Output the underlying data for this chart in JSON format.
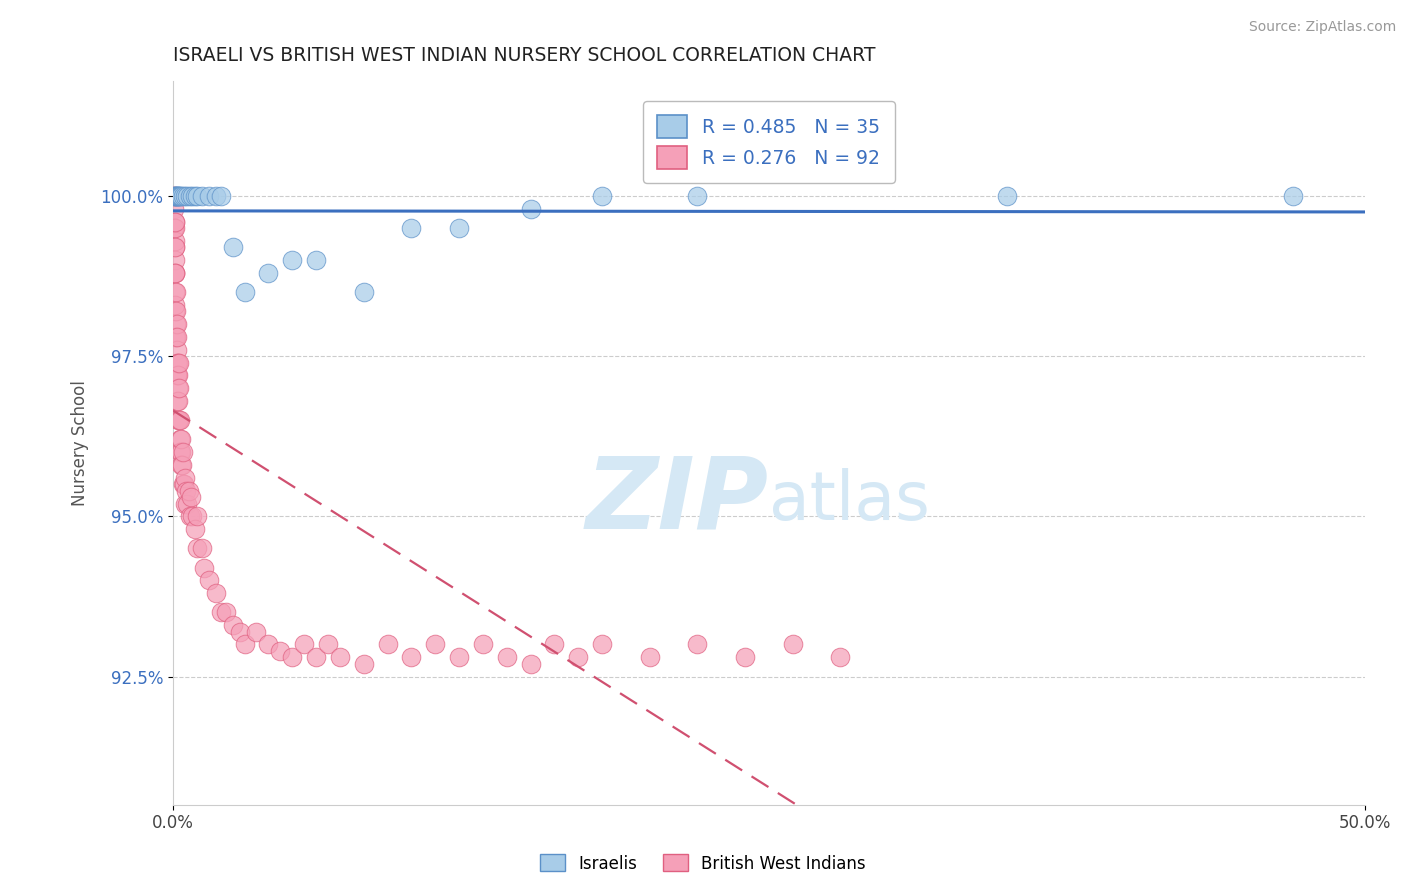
{
  "title": "ISRAELI VS BRITISH WEST INDIAN NURSERY SCHOOL CORRELATION CHART",
  "source": "Source: ZipAtlas.com",
  "ylabel": "Nursery School",
  "ytick_labels": [
    "92.5%",
    "95.0%",
    "97.5%",
    "100.0%"
  ],
  "ytick_values": [
    92.5,
    95.0,
    97.5,
    100.0
  ],
  "xmin": 0.0,
  "xmax": 50.0,
  "ymin": 90.5,
  "ymax": 101.8,
  "legend_r_israeli": "R = 0.485",
  "legend_n_israeli": "N = 35",
  "legend_r_bwi": "R = 0.276",
  "legend_n_bwi": "N = 92",
  "israeli_color": "#A8CCE8",
  "bwi_color": "#F5A0B8",
  "israeli_edge_color": "#5B90C8",
  "bwi_edge_color": "#E06080",
  "israeli_trend_color": "#3B6FBF",
  "bwi_trend_color": "#D05070",
  "watermark_color": "#D5E8F5",
  "grid_color": "#CCCCCC",
  "israeli_x": [
    0.05,
    0.08,
    0.1,
    0.12,
    0.15,
    0.18,
    0.2,
    0.22,
    0.25,
    0.3,
    0.35,
    0.4,
    0.5,
    0.6,
    0.7,
    0.8,
    0.9,
    1.0,
    1.2,
    1.5,
    1.8,
    2.0,
    2.5,
    3.0,
    4.0,
    5.0,
    6.0,
    8.0,
    10.0,
    12.0,
    15.0,
    18.0,
    22.0,
    35.0,
    47.0
  ],
  "israeli_y": [
    100.0,
    100.0,
    100.0,
    100.0,
    100.0,
    100.0,
    100.0,
    100.0,
    100.0,
    100.0,
    100.0,
    100.0,
    100.0,
    100.0,
    100.0,
    100.0,
    100.0,
    100.0,
    100.0,
    100.0,
    100.0,
    100.0,
    99.2,
    98.5,
    98.8,
    99.0,
    99.0,
    98.5,
    99.5,
    99.5,
    99.8,
    100.0,
    100.0,
    100.0,
    100.0
  ],
  "bwi_x": [
    0.02,
    0.03,
    0.04,
    0.05,
    0.05,
    0.06,
    0.06,
    0.07,
    0.07,
    0.08,
    0.08,
    0.08,
    0.09,
    0.09,
    0.1,
    0.1,
    0.1,
    0.1,
    0.1,
    0.12,
    0.12,
    0.13,
    0.14,
    0.15,
    0.15,
    0.15,
    0.16,
    0.17,
    0.18,
    0.18,
    0.2,
    0.2,
    0.2,
    0.22,
    0.22,
    0.25,
    0.25,
    0.25,
    0.28,
    0.3,
    0.3,
    0.32,
    0.35,
    0.35,
    0.38,
    0.4,
    0.4,
    0.45,
    0.5,
    0.5,
    0.55,
    0.6,
    0.65,
    0.7,
    0.75,
    0.8,
    0.9,
    1.0,
    1.0,
    1.2,
    1.3,
    1.5,
    1.8,
    2.0,
    2.2,
    2.5,
    2.8,
    3.0,
    3.5,
    4.0,
    4.5,
    5.0,
    5.5,
    6.0,
    6.5,
    7.0,
    8.0,
    9.0,
    10.0,
    11.0,
    12.0,
    13.0,
    14.0,
    15.0,
    16.0,
    17.0,
    18.0,
    20.0,
    22.0,
    24.0,
    26.0,
    28.0
  ],
  "bwi_y": [
    99.5,
    100.0,
    99.8,
    99.5,
    100.0,
    99.2,
    99.6,
    98.8,
    99.3,
    98.5,
    99.0,
    99.5,
    98.2,
    98.8,
    97.8,
    98.3,
    98.8,
    99.2,
    99.6,
    98.0,
    98.5,
    97.8,
    98.2,
    97.2,
    97.6,
    98.0,
    97.4,
    97.8,
    96.8,
    97.2,
    96.5,
    97.0,
    97.4,
    96.8,
    97.2,
    96.5,
    97.0,
    97.4,
    96.2,
    96.0,
    96.5,
    96.0,
    95.8,
    96.2,
    95.8,
    95.5,
    96.0,
    95.5,
    95.2,
    95.6,
    95.4,
    95.2,
    95.4,
    95.0,
    95.3,
    95.0,
    94.8,
    94.5,
    95.0,
    94.5,
    94.2,
    94.0,
    93.8,
    93.5,
    93.5,
    93.3,
    93.2,
    93.0,
    93.2,
    93.0,
    92.9,
    92.8,
    93.0,
    92.8,
    93.0,
    92.8,
    92.7,
    93.0,
    92.8,
    93.0,
    92.8,
    93.0,
    92.8,
    92.7,
    93.0,
    92.8,
    93.0,
    92.8,
    93.0,
    92.8,
    93.0,
    92.8
  ]
}
